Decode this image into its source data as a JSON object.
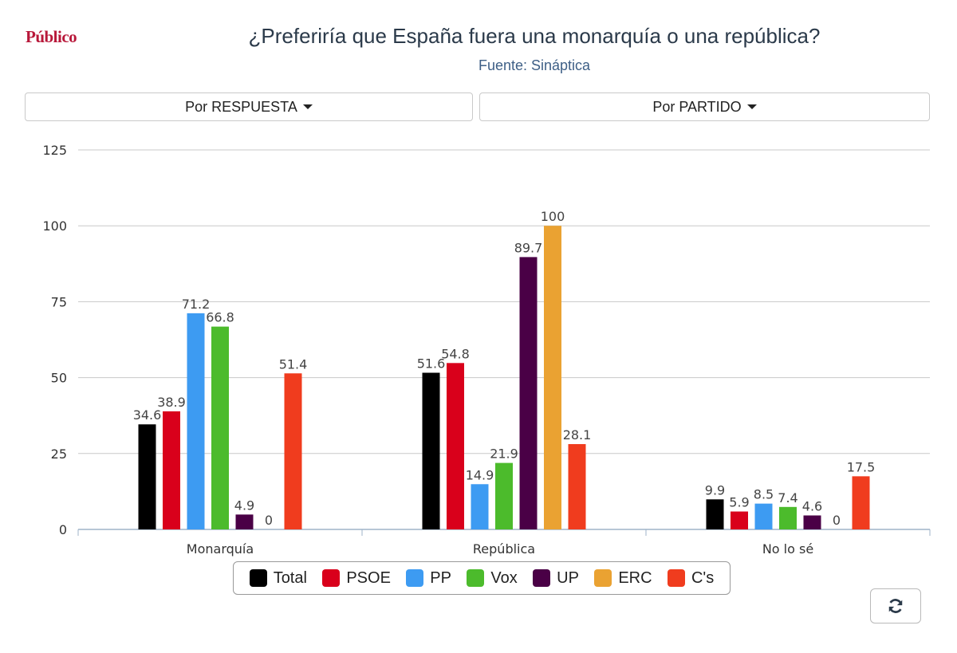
{
  "header": {
    "logo_text": "Público",
    "title": "¿Preferiría que España fuera una monarquía o una república?",
    "subtitle": "Fuente: Sináptica"
  },
  "controls": {
    "by_answer_label": "Por RESPUESTA",
    "by_party_label": "Por PARTIDO",
    "refresh_icon": "refresh-icon"
  },
  "colors": {
    "Total": "#000000",
    "PSOE": "#d9001b",
    "PP": "#3d9bf2",
    "Vox": "#4cbb2c",
    "UP": "#4a0046",
    "ERC": "#eaa232",
    "C's": "#f03c1e"
  },
  "chart_data": {
    "type": "bar",
    "title": "¿Preferiría que España fuera una monarquía o una república?",
    "subtitle": "Fuente: Sináptica",
    "categories": [
      "Monarquía",
      "República",
      "No lo sé"
    ],
    "series": [
      {
        "name": "Total",
        "values": [
          34.6,
          51.6,
          9.9
        ]
      },
      {
        "name": "PSOE",
        "values": [
          38.9,
          54.8,
          5.9
        ]
      },
      {
        "name": "PP",
        "values": [
          71.2,
          14.9,
          8.5
        ]
      },
      {
        "name": "Vox",
        "values": [
          66.8,
          21.9,
          7.4
        ]
      },
      {
        "name": "UP",
        "values": [
          4.9,
          89.7,
          4.6
        ]
      },
      {
        "name": "ERC",
        "values": [
          0,
          100,
          0
        ]
      },
      {
        "name": "C's",
        "values": [
          51.4,
          28.1,
          17.5
        ]
      }
    ],
    "ylim": [
      0,
      125
    ],
    "yticks": [
      0,
      25,
      50,
      75,
      100,
      125
    ],
    "grid": true,
    "legend_position": "bottom"
  }
}
